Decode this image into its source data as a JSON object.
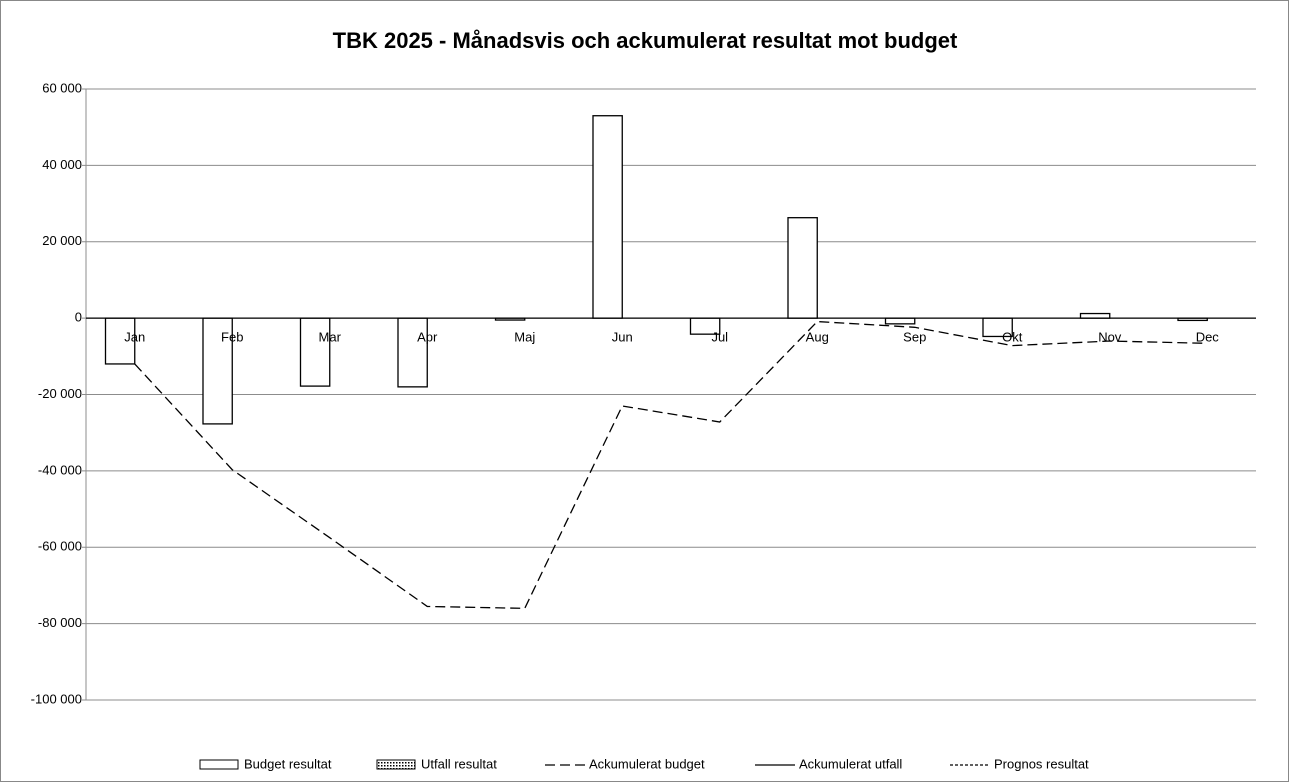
{
  "chart_data": {
    "type": "bar",
    "title": "TBK 2025 - Månadsvis och ackumulerat resultat mot budget",
    "categories": [
      "Jan",
      "Feb",
      "Mar",
      "Apr",
      "Maj",
      "Jun",
      "Jul",
      "Aug",
      "Sep",
      "Okt",
      "Nov",
      "Dec"
    ],
    "series": [
      {
        "name": "Budget resultat",
        "type": "bar",
        "color": "#000000",
        "fill": "#ffffff",
        "values": [
          -12000,
          -27700,
          -17800,
          -18000,
          -500,
          53000,
          -4200,
          26300,
          -1500,
          -4800,
          1200,
          -600
        ]
      },
      {
        "name": "Utfall resultat",
        "type": "bar",
        "color": "#000000",
        "fill": "pattern",
        "values": [
          null,
          null,
          null,
          null,
          null,
          null,
          null,
          null,
          null,
          null,
          null,
          null
        ]
      },
      {
        "name": "Ackumulerat budget",
        "type": "line",
        "color": "#000000",
        "dash": "dashed",
        "values": [
          -12000,
          -39700,
          -57500,
          -75500,
          -76000,
          -23000,
          -27200,
          -900,
          -2400,
          -7200,
          -6000,
          -6600
        ]
      },
      {
        "name": "Ackumulerat utfall",
        "type": "line",
        "color": "#000000",
        "dash": "solid",
        "values": [
          null,
          null,
          null,
          null,
          null,
          null,
          null,
          null,
          null,
          null,
          null,
          null
        ]
      },
      {
        "name": "Prognos resultat",
        "type": "line",
        "color": "#000000",
        "dash": "dotted",
        "values": [
          null,
          null,
          null,
          null,
          null,
          null,
          null,
          null,
          null,
          null,
          null,
          null
        ]
      }
    ],
    "ylim": [
      -100000,
      60000
    ],
    "yticks": [
      {
        "value": -100000,
        "label": "-100 000"
      },
      {
        "value": -80000,
        "label": "-80 000"
      },
      {
        "value": -60000,
        "label": "-60 000"
      },
      {
        "value": -40000,
        "label": "-40 000"
      },
      {
        "value": -20000,
        "label": "-20 000"
      },
      0,
      {
        "value": 20000,
        "label": "20 000"
      },
      {
        "value": 40000,
        "label": "40 000"
      },
      {
        "value": 60000,
        "label": "60 000"
      }
    ],
    "grid": true,
    "legend": "bottom"
  }
}
